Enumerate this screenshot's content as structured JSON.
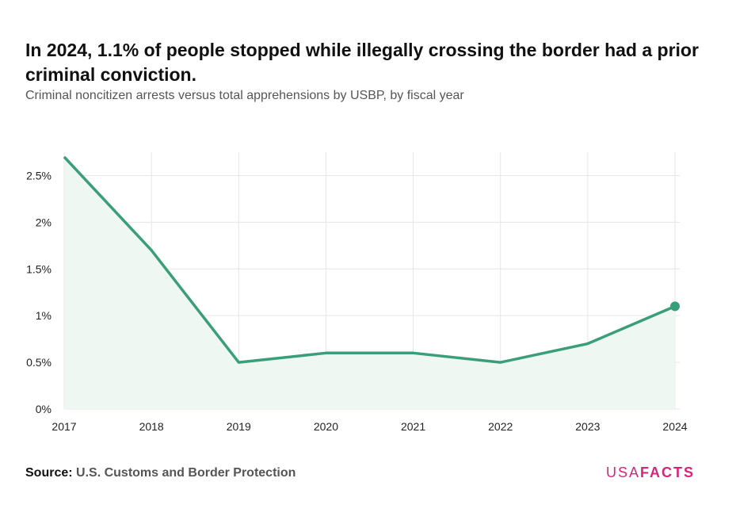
{
  "header": {
    "title": "In 2024, 1.1% of people stopped while illegally crossing the border had a prior criminal conviction.",
    "subtitle": "Criminal noncitizen arrests versus total apprehensions by USBP, by fiscal year"
  },
  "footer": {
    "source_label": "Source:",
    "source_value": "U.S. Customs and Border Protection",
    "logo_usa": "USA",
    "logo_facts": "FACTS"
  },
  "chart_data": {
    "type": "area",
    "title": "In 2024, 1.1% of people stopped while illegally crossing the border had a prior criminal conviction.",
    "subtitle": "Criminal noncitizen arrests versus total apprehensions by USBP, by fiscal year",
    "xlabel": "",
    "ylabel": "",
    "x": [
      "2017",
      "2018",
      "2019",
      "2020",
      "2021",
      "2022",
      "2023",
      "2024"
    ],
    "series": [
      {
        "values": [
          2.7,
          1.7,
          0.5,
          0.6,
          0.6,
          0.5,
          0.7,
          1.1
        ]
      }
    ],
    "y_ticks": [
      0,
      0.5,
      1,
      1.5,
      2,
      2.5
    ],
    "y_tick_labels": [
      "0%",
      "0.5%",
      "1%",
      "1.5%",
      "2%",
      "2.5%"
    ],
    "ylim": [
      0,
      2.75
    ],
    "grid": true,
    "legend": "none",
    "highlight_last_point": true,
    "colors": {
      "line": "#3a9e78",
      "fill": "#eef7f2",
      "grid": "#e6e6e6"
    }
  }
}
